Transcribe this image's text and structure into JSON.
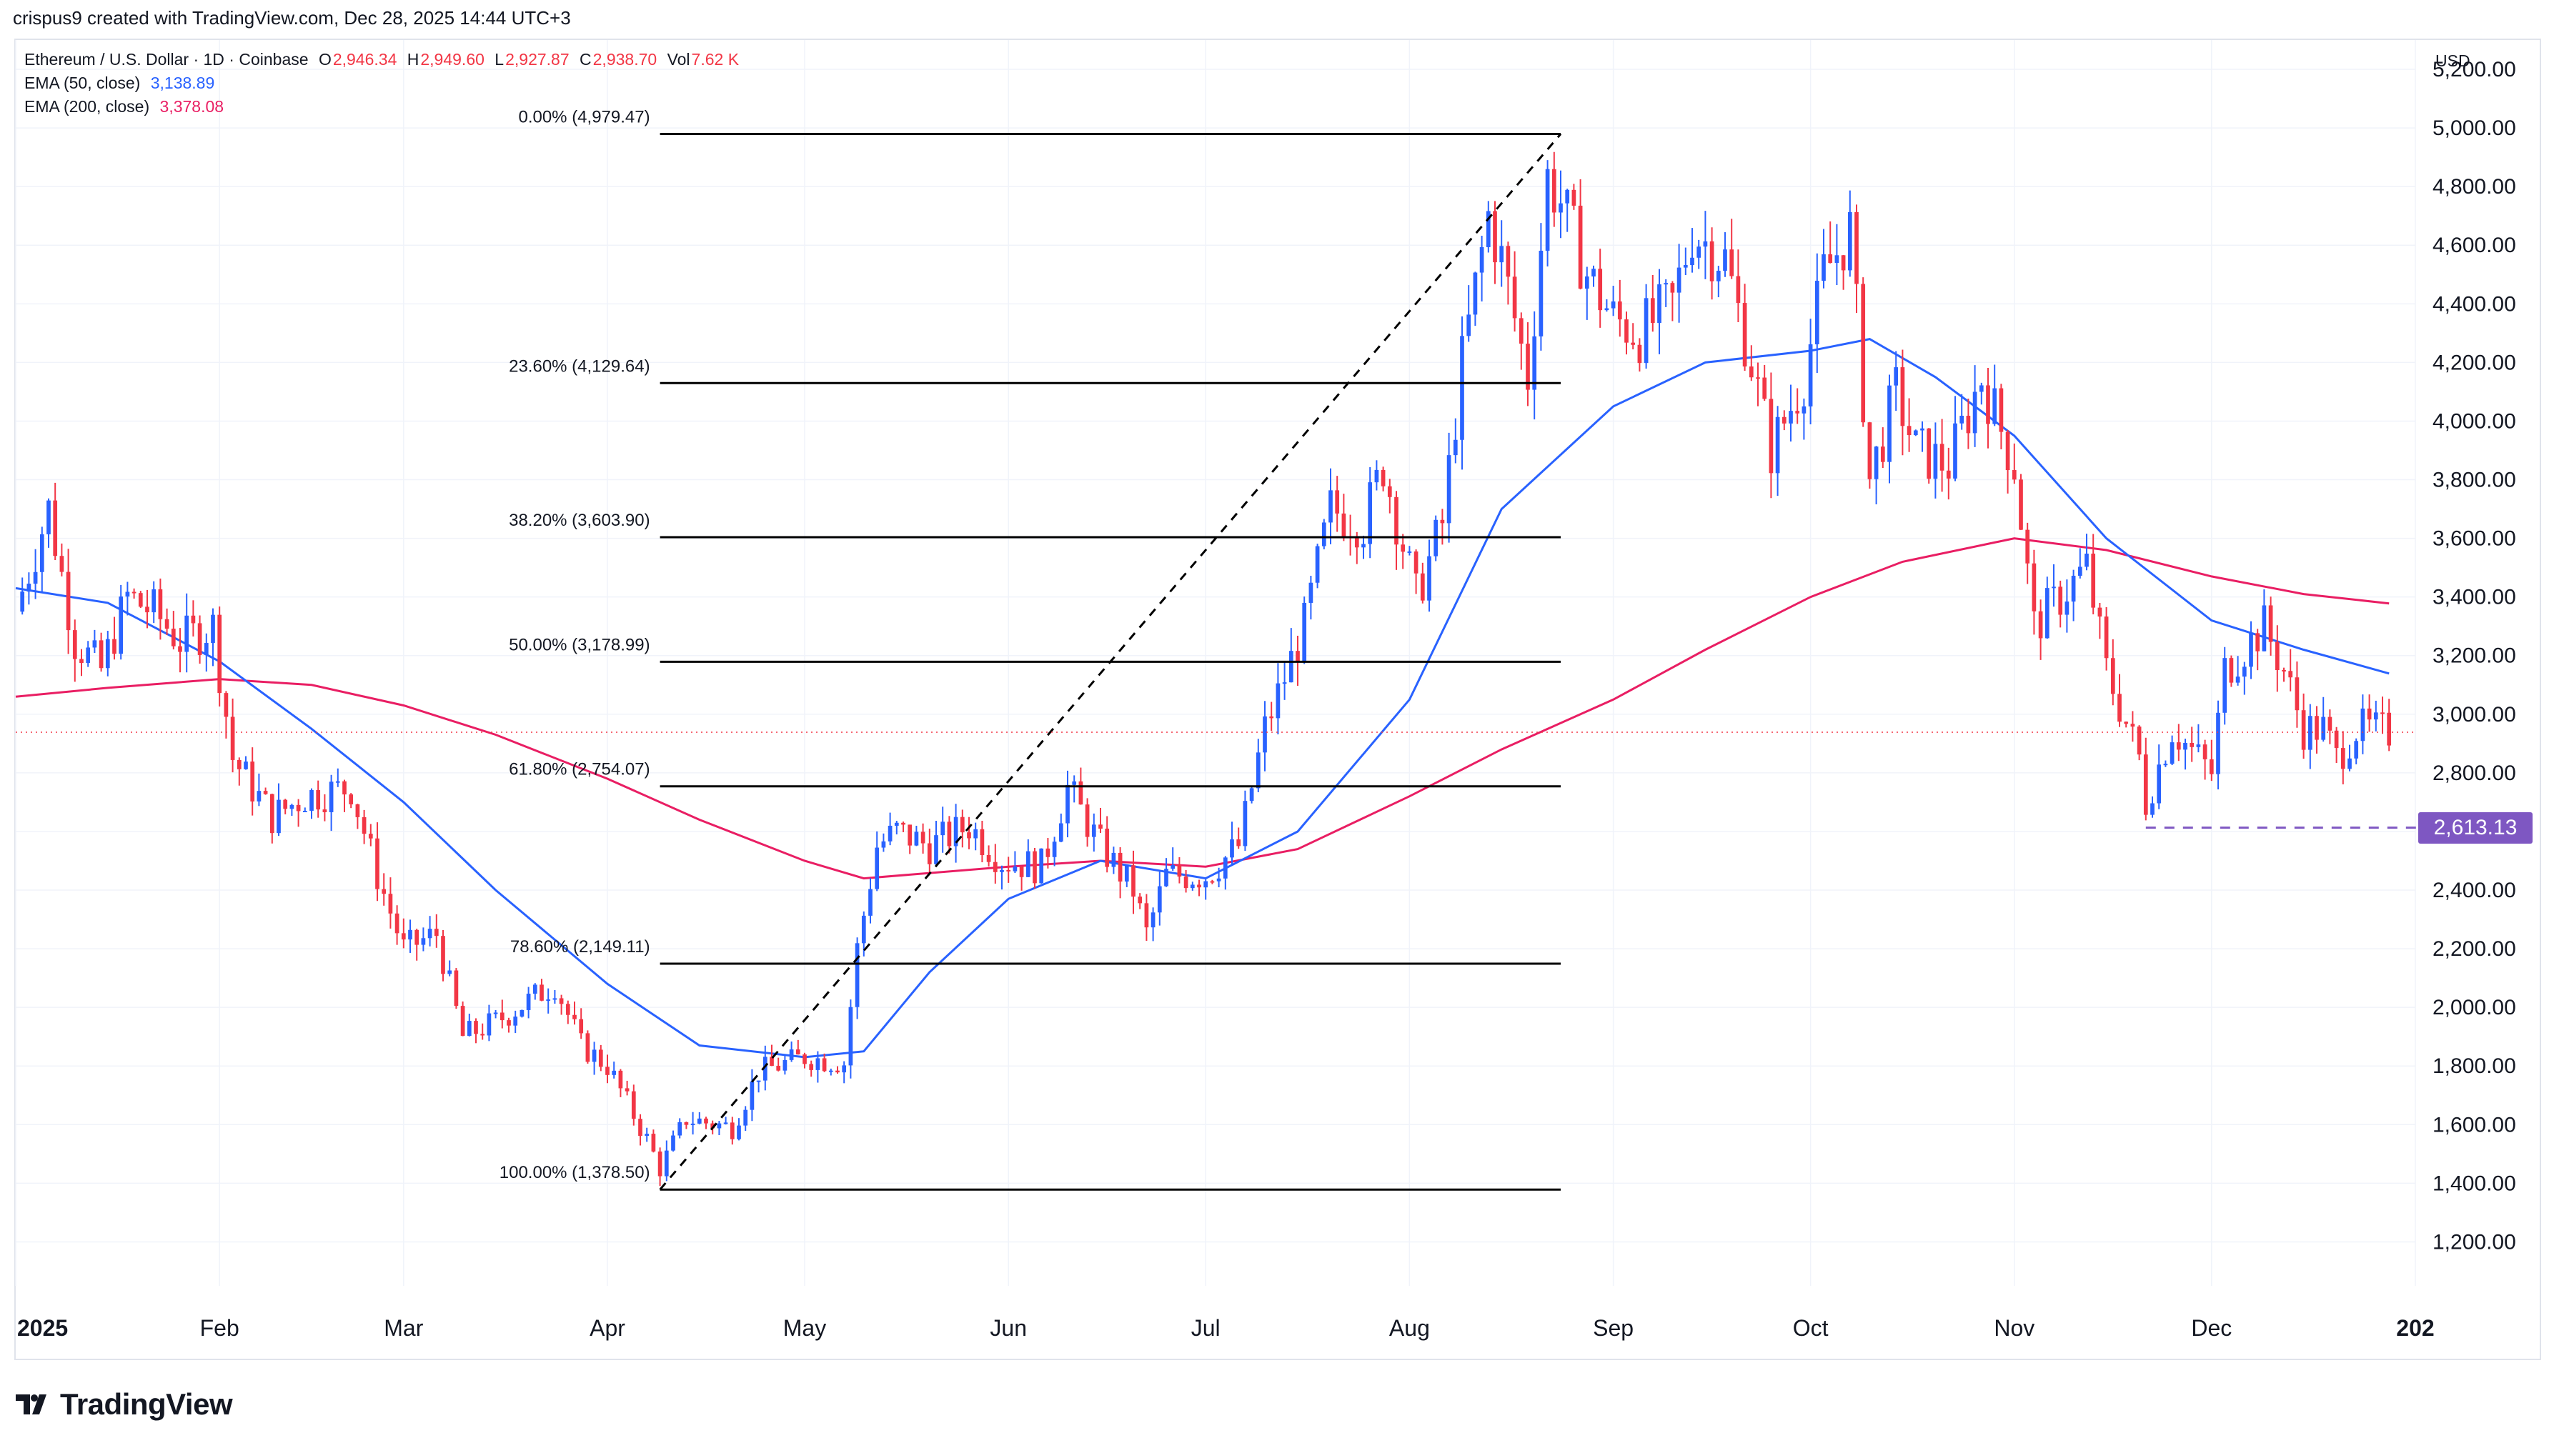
{
  "header": {
    "text": "crispus9 created with TradingView.com, Dec 28, 2025 14:44 UTC+3"
  },
  "legend": {
    "symbol": "Ethereum / U.S. Dollar · 1D · Coinbase",
    "o_label": "O",
    "o_value": "2,946.34",
    "h_label": "H",
    "h_value": "2,949.60",
    "l_label": "L",
    "l_value": "2,927.87",
    "c_label": "C",
    "c_value": "2,938.70",
    "vol_label": "Vol",
    "vol_value": "7.62 K",
    "ema50_label": "EMA (50, close)",
    "ema50_value": "3,138.89",
    "ema200_label": "EMA (200, close)",
    "ema200_value": "3,378.08"
  },
  "price_axis": {
    "currency": "USD"
  },
  "branding": {
    "logo_text": "TradingView"
  },
  "colors": {
    "up": "#2962ff",
    "down": "#f23645",
    "ema50": "#2962ff",
    "ema200": "#e91e63",
    "fib": "#000000",
    "support": "#7e57c2",
    "grid": "#f0f3fa"
  },
  "chart_data": {
    "type": "candlestick",
    "title": "Ethereum / U.S. Dollar · 1D · Coinbase",
    "x_range": [
      "2025-01-01",
      "2026-01-01"
    ],
    "ylim": [
      1050,
      5300
    ],
    "y_ticks": [
      1200,
      1400,
      1600,
      1800,
      2000,
      2200,
      2400,
      2600,
      2800,
      3000,
      3200,
      3400,
      3600,
      3800,
      4000,
      4200,
      4400,
      4600,
      4800,
      5000,
      5200
    ],
    "y_tick_labels": [
      "1,200.00",
      "1,400.00",
      "1,600.00",
      "1,800.00",
      "2,000.00",
      "2,200.00",
      "2,400.00",
      "2,600.00",
      "2,800.00",
      "3,000.00",
      "3,200.00",
      "3,400.00",
      "3,600.00",
      "3,800.00",
      "4,000.00",
      "4,200.00",
      "4,400.00",
      "4,600.00",
      "4,800.00",
      "5,000.00",
      "5,200.00"
    ],
    "x_ticks": [
      {
        "date": "2025-01-01",
        "label": "2025"
      },
      {
        "date": "2025-02-01",
        "label": "Feb"
      },
      {
        "date": "2025-03-01",
        "label": "Mar"
      },
      {
        "date": "2025-04-01",
        "label": "Apr"
      },
      {
        "date": "2025-05-01",
        "label": "May"
      },
      {
        "date": "2025-06-01",
        "label": "Jun"
      },
      {
        "date": "2025-07-01",
        "label": "Jul"
      },
      {
        "date": "2025-08-01",
        "label": "Aug"
      },
      {
        "date": "2025-09-01",
        "label": "Sep"
      },
      {
        "date": "2025-10-01",
        "label": "Oct"
      },
      {
        "date": "2025-11-01",
        "label": "Nov"
      },
      {
        "date": "2025-12-01",
        "label": "Dec"
      },
      {
        "date": "2026-01-01",
        "label": "202"
      }
    ],
    "last_close": 2938.7,
    "fibonacci": {
      "start": {
        "date": "2025-04-09",
        "price": 1378.5
      },
      "end": {
        "date": "2025-08-24",
        "price": 4979.47
      },
      "levels": [
        {
          "ratio": "0.00%",
          "price": 4979.47,
          "label": "0.00% (4,979.47)"
        },
        {
          "ratio": "23.60%",
          "price": 4129.64,
          "label": "23.60% (4,129.64)"
        },
        {
          "ratio": "38.20%",
          "price": 3603.9,
          "label": "38.20% (3,603.90)"
        },
        {
          "ratio": "50.00%",
          "price": 3178.99,
          "label": "50.00% (3,178.99)"
        },
        {
          "ratio": "61.80%",
          "price": 2754.07,
          "label": "61.80% (2,754.07)"
        },
        {
          "ratio": "78.60%",
          "price": 2149.11,
          "label": "78.60% (2,149.11)"
        },
        {
          "ratio": "100.00%",
          "price": 1378.5,
          "label": "100.00% (1,378.50)"
        }
      ]
    },
    "support": {
      "price": 2613.13,
      "label": "2,613.13",
      "from_date": "2025-11-21"
    },
    "ema50_points": [
      [
        "2025-01-01",
        3430
      ],
      [
        "2025-01-15",
        3380
      ],
      [
        "2025-02-01",
        3180
      ],
      [
        "2025-02-15",
        2950
      ],
      [
        "2025-03-01",
        2700
      ],
      [
        "2025-03-15",
        2400
      ],
      [
        "2025-04-01",
        2080
      ],
      [
        "2025-04-15",
        1870
      ],
      [
        "2025-05-01",
        1830
      ],
      [
        "2025-05-10",
        1850
      ],
      [
        "2025-05-20",
        2120
      ],
      [
        "2025-06-01",
        2370
      ],
      [
        "2025-06-15",
        2500
      ],
      [
        "2025-07-01",
        2440
      ],
      [
        "2025-07-15",
        2600
      ],
      [
        "2025-08-01",
        3050
      ],
      [
        "2025-08-15",
        3700
      ],
      [
        "2025-09-01",
        4050
      ],
      [
        "2025-09-15",
        4200
      ],
      [
        "2025-10-01",
        4240
      ],
      [
        "2025-10-10",
        4280
      ],
      [
        "2025-10-20",
        4150
      ],
      [
        "2025-11-01",
        3950
      ],
      [
        "2025-11-15",
        3600
      ],
      [
        "2025-12-01",
        3320
      ],
      [
        "2025-12-15",
        3220
      ],
      [
        "2025-12-28",
        3139
      ]
    ],
    "ema200_points": [
      [
        "2025-01-01",
        3060
      ],
      [
        "2025-01-15",
        3090
      ],
      [
        "2025-02-01",
        3120
      ],
      [
        "2025-02-15",
        3100
      ],
      [
        "2025-03-01",
        3030
      ],
      [
        "2025-03-15",
        2930
      ],
      [
        "2025-04-01",
        2780
      ],
      [
        "2025-04-15",
        2640
      ],
      [
        "2025-05-01",
        2500
      ],
      [
        "2025-05-10",
        2440
      ],
      [
        "2025-06-01",
        2480
      ],
      [
        "2025-06-15",
        2500
      ],
      [
        "2025-07-01",
        2480
      ],
      [
        "2025-07-15",
        2540
      ],
      [
        "2025-08-01",
        2720
      ],
      [
        "2025-08-15",
        2880
      ],
      [
        "2025-09-01",
        3050
      ],
      [
        "2025-09-15",
        3220
      ],
      [
        "2025-10-01",
        3400
      ],
      [
        "2025-10-15",
        3520
      ],
      [
        "2025-11-01",
        3600
      ],
      [
        "2025-11-15",
        3560
      ],
      [
        "2025-12-01",
        3470
      ],
      [
        "2025-12-15",
        3410
      ],
      [
        "2025-12-28",
        3378
      ]
    ],
    "price_path": [
      [
        "2025-01-01",
        3350
      ],
      [
        "2025-01-06",
        3700
      ],
      [
        "2025-01-10",
        3250
      ],
      [
        "2025-01-14",
        3150
      ],
      [
        "2025-01-18",
        3400
      ],
      [
        "2025-01-22",
        3350
      ],
      [
        "2025-01-26",
        3250
      ],
      [
        "2025-01-31",
        3300
      ],
      [
        "2025-02-03",
        2850
      ],
      [
        "2025-02-09",
        2650
      ],
      [
        "2025-02-14",
        2720
      ],
      [
        "2025-02-21",
        2750
      ],
      [
        "2025-02-25",
        2450
      ],
      [
        "2025-03-01",
        2200
      ],
      [
        "2025-03-06",
        2250
      ],
      [
        "2025-03-10",
        1900
      ],
      [
        "2025-03-15",
        1950
      ],
      [
        "2025-03-24",
        2080
      ],
      [
        "2025-03-28",
        1870
      ],
      [
        "2025-04-01",
        1800
      ],
      [
        "2025-04-07",
        1550
      ],
      [
        "2025-04-09",
        1450
      ],
      [
        "2025-04-13",
        1620
      ],
      [
        "2025-04-20",
        1590
      ],
      [
        "2025-04-24",
        1780
      ],
      [
        "2025-05-01",
        1830
      ],
      [
        "2025-05-07",
        1810
      ],
      [
        "2025-05-09",
        2200
      ],
      [
        "2025-05-12",
        2550
      ],
      [
        "2025-05-15",
        2600
      ],
      [
        "2025-05-20",
        2550
      ],
      [
        "2025-05-26",
        2620
      ],
      [
        "2025-05-31",
        2500
      ],
      [
        "2025-06-06",
        2480
      ],
      [
        "2025-06-10",
        2750
      ],
      [
        "2025-06-15",
        2550
      ],
      [
        "2025-06-20",
        2400
      ],
      [
        "2025-06-22",
        2250
      ],
      [
        "2025-06-25",
        2450
      ],
      [
        "2025-07-01",
        2450
      ],
      [
        "2025-07-06",
        2550
      ],
      [
        "2025-07-10",
        2950
      ],
      [
        "2025-07-16",
        3300
      ],
      [
        "2025-07-20",
        3700
      ],
      [
        "2025-07-25",
        3650
      ],
      [
        "2025-07-28",
        3850
      ],
      [
        "2025-08-02",
        3400
      ],
      [
        "2025-08-06",
        3650
      ],
      [
        "2025-08-09",
        4200
      ],
      [
        "2025-08-13",
        4700
      ],
      [
        "2025-08-15",
        4550
      ],
      [
        "2025-08-19",
        4150
      ],
      [
        "2025-08-22",
        4830
      ],
      [
        "2025-08-24",
        4750
      ],
      [
        "2025-08-28",
        4500
      ],
      [
        "2025-09-01",
        4350
      ],
      [
        "2025-09-05",
        4300
      ],
      [
        "2025-09-10",
        4400
      ],
      [
        "2025-09-13",
        4650
      ],
      [
        "2025-09-18",
        4550
      ],
      [
        "2025-09-22",
        4200
      ],
      [
        "2025-09-25",
        3900
      ],
      [
        "2025-09-30",
        4150
      ],
      [
        "2025-10-03",
        4500
      ],
      [
        "2025-10-07",
        4650
      ],
      [
        "2025-10-10",
        3800
      ],
      [
        "2025-10-14",
        4100
      ],
      [
        "2025-10-17",
        3900
      ],
      [
        "2025-10-22",
        3850
      ],
      [
        "2025-10-27",
        4150
      ],
      [
        "2025-11-01",
        3850
      ],
      [
        "2025-11-04",
        3300
      ],
      [
        "2025-11-08",
        3400
      ],
      [
        "2025-11-12",
        3500
      ],
      [
        "2025-11-15",
        3150
      ],
      [
        "2025-11-20",
        2850
      ],
      [
        "2025-11-21",
        2700
      ],
      [
        "2025-11-25",
        2950
      ],
      [
        "2025-12-01",
        2800
      ],
      [
        "2025-12-03",
        3150
      ],
      [
        "2025-12-09",
        3300
      ],
      [
        "2025-12-12",
        3150
      ],
      [
        "2025-12-15",
        2950
      ],
      [
        "2025-12-18",
        2950
      ],
      [
        "2025-12-20",
        2850
      ],
      [
        "2025-12-23",
        2950
      ],
      [
        "2025-12-28",
        2939
      ]
    ]
  }
}
